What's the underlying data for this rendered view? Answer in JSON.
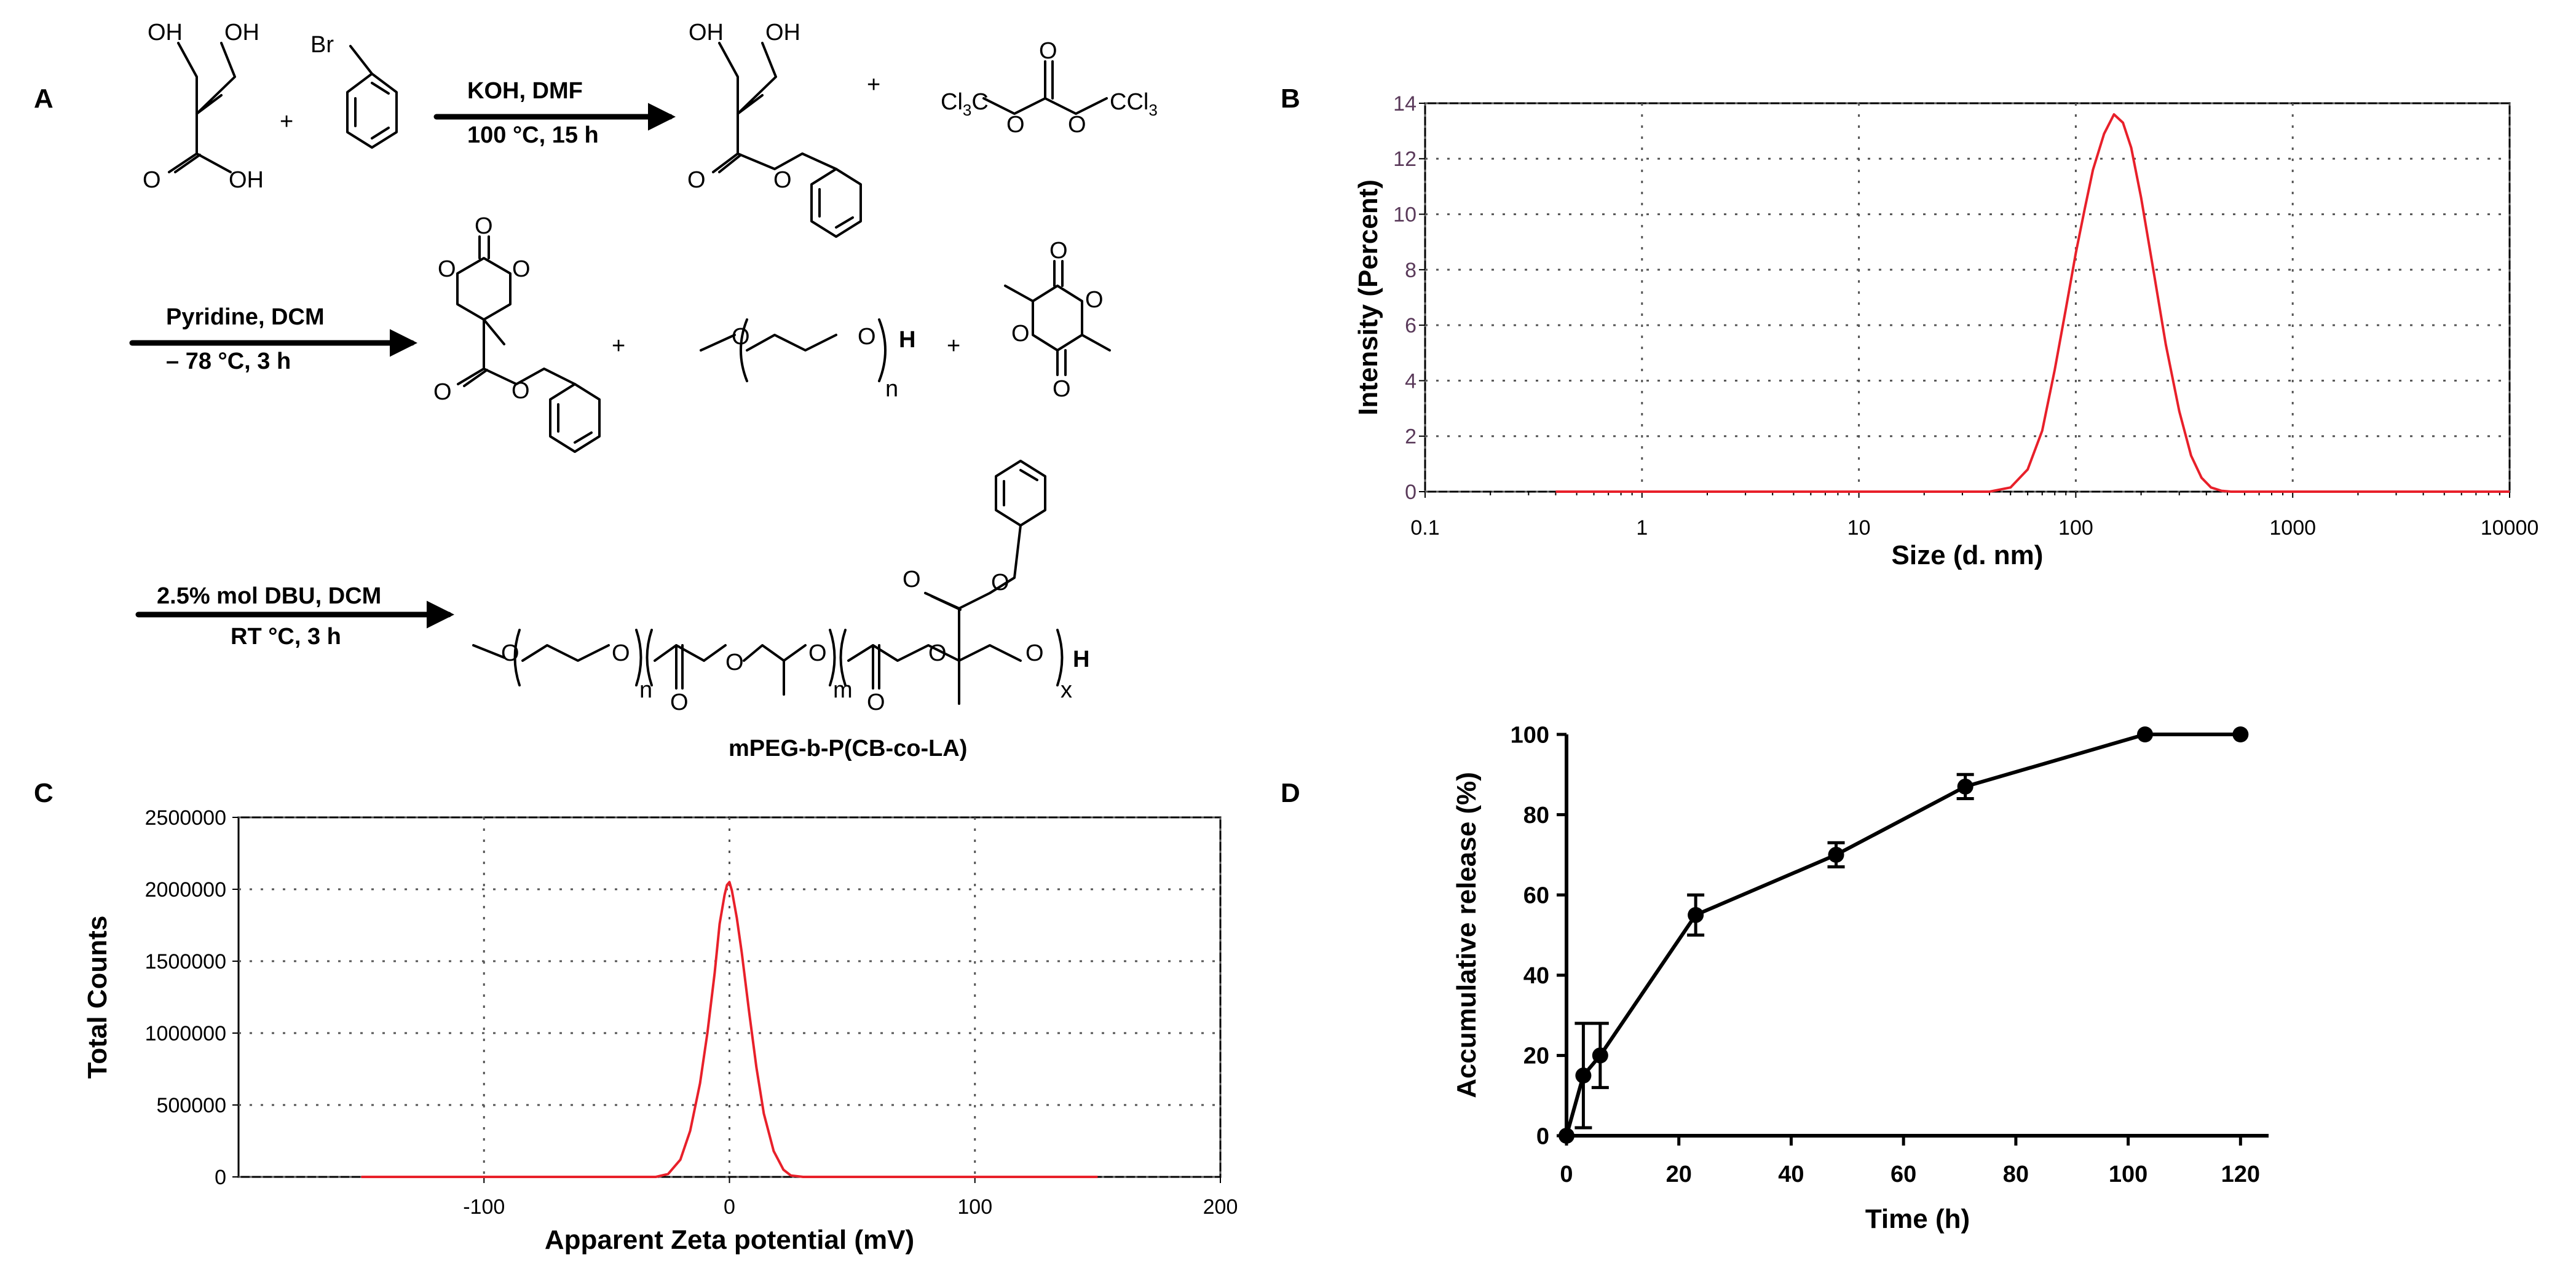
{
  "panel_labels": {
    "a": "A",
    "b": "B",
    "c": "C",
    "d": "D"
  },
  "scheme": {
    "step1_conditions": [
      "KOH, DMF",
      "100 °C, 15 h"
    ],
    "step2_conditions": [
      "Pyridine, DCM",
      "– 78 °C, 3 h"
    ],
    "step3_conditions": [
      "2.5% mol DBU, DCM",
      "RT °C, 3 h"
    ],
    "plus": "+",
    "reagent_triphosgene": "Cl3C–O–C(=O)–O–CCl3",
    "label_ccl3_left": "Cl",
    "label_ccl3_left_sub": "3",
    "label_ccl3_left_c": "C",
    "label_ccl3_right": "CCl",
    "label_ccl3_right_sub": "3",
    "atom_O": "O",
    "atom_OH": "OH",
    "atom_Br": "Br",
    "atom_H": "H",
    "sub_n": "n",
    "sub_m": "m",
    "sub_x": "x",
    "product_name": "mPEG-b-P(CB-co-LA)"
  },
  "colors": {
    "curve": "#e8202a",
    "axis": "#000000",
    "grid": "#555555"
  },
  "chart_data": [
    {
      "id": "B",
      "type": "line",
      "title": "",
      "xlabel": "Size (d. nm)",
      "ylabel": "Intensity (Percent)",
      "xscale": "log",
      "xlim": [
        0.1,
        10000
      ],
      "ylim": [
        0,
        14
      ],
      "xticks": [
        0.1,
        1,
        10,
        100,
        1000,
        10000
      ],
      "xtick_labels": [
        "0.1",
        "1",
        "10",
        "100",
        "1000",
        "10000"
      ],
      "yticks": [
        0,
        2,
        4,
        6,
        8,
        10,
        12,
        14
      ],
      "ytick_labels": [
        "0",
        "2",
        "4",
        "6",
        "8",
        "10",
        "12",
        "14"
      ],
      "grid": true,
      "series": [
        {
          "name": "Intensity",
          "x": [
            0.4,
            40,
            50,
            60,
            70,
            80,
            90,
            100,
            110,
            120,
            135,
            150,
            165,
            180,
            200,
            230,
            260,
            300,
            340,
            380,
            420,
            470,
            520,
            600,
            10000
          ],
          "y": [
            0,
            0,
            0.15,
            0.8,
            2.2,
            4.4,
            6.6,
            8.6,
            10.2,
            11.6,
            12.9,
            13.6,
            13.3,
            12.4,
            10.6,
            7.8,
            5.3,
            2.9,
            1.3,
            0.5,
            0.15,
            0.03,
            0,
            0,
            0
          ]
        }
      ]
    },
    {
      "id": "C",
      "type": "line",
      "title": "",
      "xlabel": "Apparent Zeta potential (mV)",
      "ylabel": "Total Counts",
      "xlim": [
        -200,
        200
      ],
      "ylim": [
        0,
        2500000
      ],
      "xticks": [
        -100,
        0,
        100,
        200
      ],
      "xtick_labels": [
        "-100",
        "0",
        "100",
        "200"
      ],
      "yticks": [
        0,
        500000,
        1000000,
        1500000,
        2000000,
        2500000
      ],
      "ytick_labels": [
        "0",
        "500000",
        "1000000",
        "1500000",
        "2000000",
        "2500000"
      ],
      "grid": true,
      "series": [
        {
          "name": "Counts",
          "x": [
            -150,
            -30,
            -25,
            -20,
            -16,
            -12,
            -9,
            -6,
            -4,
            -2,
            -1,
            0,
            1,
            3,
            5,
            8,
            11,
            14,
            18,
            22,
            25,
            30,
            150
          ],
          "y": [
            0,
            0,
            20000,
            120000,
            320000,
            650000,
            1000000,
            1420000,
            1760000,
            1960000,
            2030000,
            2050000,
            1990000,
            1800000,
            1560000,
            1150000,
            760000,
            440000,
            180000,
            50000,
            10000,
            0,
            0
          ]
        }
      ]
    },
    {
      "id": "D",
      "type": "line",
      "title": "",
      "xlabel": "Time (h)",
      "ylabel": "Accumulative release (%)",
      "xlim": [
        0,
        125
      ],
      "ylim": [
        0,
        100
      ],
      "xticks": [
        0,
        20,
        40,
        60,
        80,
        100,
        120
      ],
      "xtick_labels": [
        "0",
        "20",
        "40",
        "60",
        "80",
        "100",
        "120"
      ],
      "yticks": [
        0,
        20,
        40,
        60,
        80,
        100
      ],
      "ytick_labels": [
        "0",
        "20",
        "40",
        "60",
        "80",
        "100"
      ],
      "grid": false,
      "series": [
        {
          "name": "Release",
          "x": [
            0,
            3,
            6,
            23,
            48,
            71,
            103,
            120
          ],
          "y": [
            0,
            15,
            20,
            55,
            70,
            87,
            100,
            100
          ],
          "yerr": [
            0,
            13,
            8,
            5,
            3,
            3,
            0,
            0
          ]
        }
      ]
    }
  ]
}
